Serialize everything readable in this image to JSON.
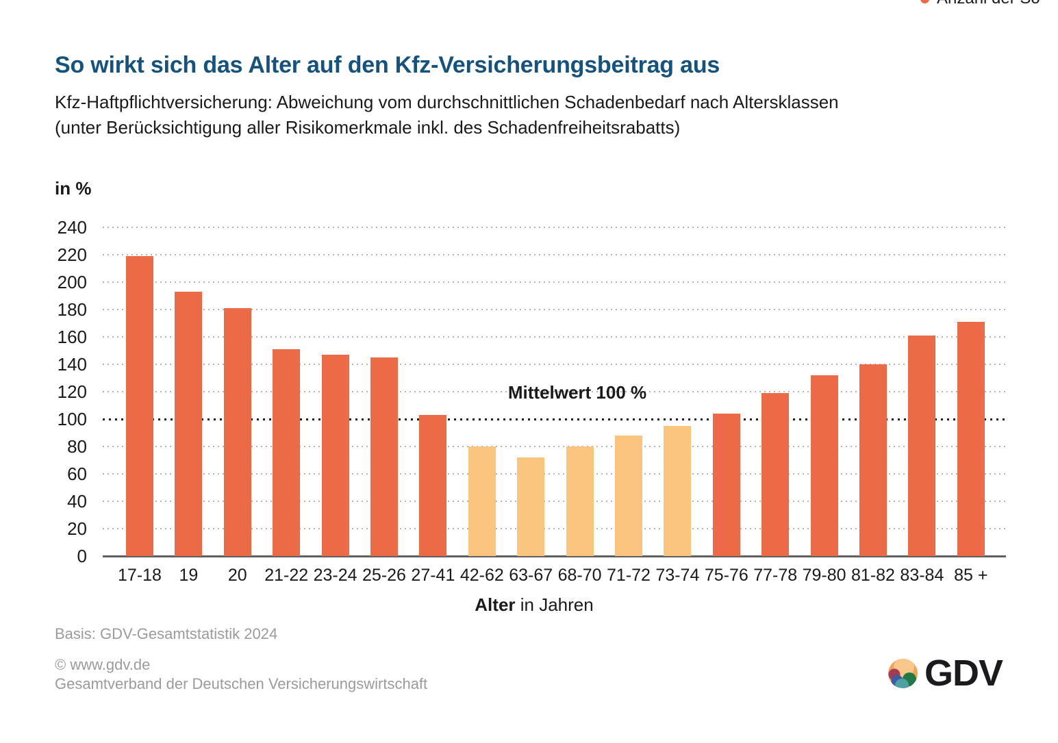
{
  "clipped_legend": {
    "label": "Anzahl der So",
    "dot_color": "#EC6B46"
  },
  "chart_data": {
    "type": "bar",
    "title": "So wirkt sich das Alter auf den Kfz-Versicherungsbeitrag aus",
    "subtitle": "Kfz-Haftpflichtversicherung: Abweichung vom durchschnittlichen Schadenbedarf nach Altersklassen\n(unter Berücksichtigung aller Risikomerkmale inkl. des Schadenfreiheitsrabatts)",
    "unit_label": "in %",
    "categories": [
      "17-18",
      "19",
      "20",
      "21-22",
      "23-24",
      "25-26",
      "27-41",
      "42-62",
      "63-67",
      "68-70",
      "71-72",
      "73-74",
      "75-76",
      "77-78",
      "79-80",
      "81-82",
      "83-84",
      "85 +"
    ],
    "values": [
      219,
      193,
      181,
      151,
      147,
      145,
      103,
      80,
      72,
      80,
      88,
      95,
      104,
      119,
      132,
      140,
      161,
      171
    ],
    "ylim": [
      0,
      240
    ],
    "ytick_step": 20,
    "grid": "horizontal-dotted",
    "legend_position": "top-right-clipped",
    "threshold": 100,
    "annotation": "Mittelwert 100 %",
    "color_above_threshold": "#EC6B46",
    "color_below_threshold": "#FBC580",
    "xlabel_bold": "Alter",
    "xlabel_regular": " in Jahren"
  },
  "footer": {
    "basis": "Basis: GDV-Gesamtstatistik 2024",
    "copyright": "© www.gdv.de",
    "organization": "Gesamtverband der Deutschen Versicherungswirtschaft",
    "logo_text": "GDV"
  }
}
